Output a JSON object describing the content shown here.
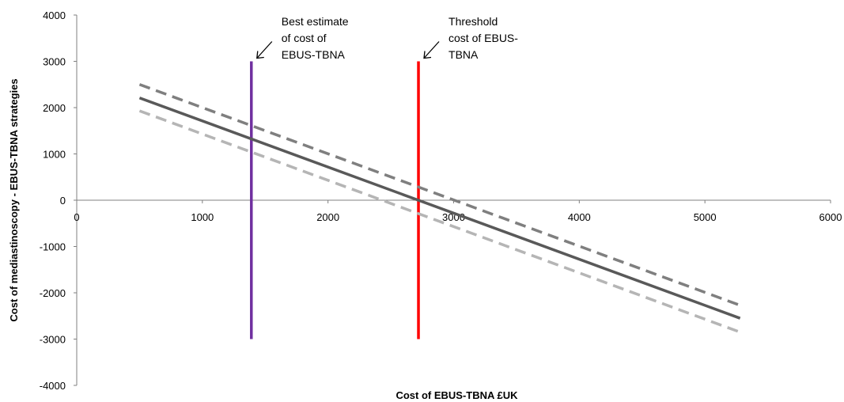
{
  "chart_data": {
    "type": "line",
    "xlabel": "Cost of EBUS-TBNA £UK",
    "ylabel": "Cost of mediastinoscopy - EBUS-TBNA strategies",
    "xlim": [
      0,
      6000
    ],
    "ylim": [
      -4000,
      4000
    ],
    "x_ticks": [
      0,
      1000,
      2000,
      3000,
      4000,
      5000,
      6000
    ],
    "y_ticks": [
      4000,
      3000,
      2000,
      1000,
      0,
      -1000,
      -2000,
      -3000,
      -4000
    ],
    "grid": false,
    "legend": "none",
    "series": [
      {
        "style": "dashed",
        "color": "#7f7f7f",
        "x": [
          500,
          5280
        ],
        "y": [
          2500,
          -2270
        ]
      },
      {
        "style": "solid",
        "color": "#595959",
        "x": [
          500,
          5280
        ],
        "y": [
          2210,
          -2550
        ]
      },
      {
        "style": "dashed",
        "color": "#b5b5b5",
        "x": [
          500,
          5280
        ],
        "y": [
          1930,
          -2850
        ]
      }
    ],
    "vertical_lines": [
      {
        "x": 1390,
        "y_from": -3000,
        "y_to": 3000,
        "color": "#7030a0"
      },
      {
        "x": 2720,
        "y_from": -3000,
        "y_to": 3000,
        "color": "#ff0000"
      }
    ],
    "annotations": [
      {
        "lines": [
          "Best estimate",
          "of cost of",
          "EBUS-TBNA"
        ],
        "points_to_x": 1390
      },
      {
        "lines": [
          "Threshold",
          "cost of EBUS-",
          "TBNA"
        ],
        "points_to_x": 2720
      }
    ]
  }
}
